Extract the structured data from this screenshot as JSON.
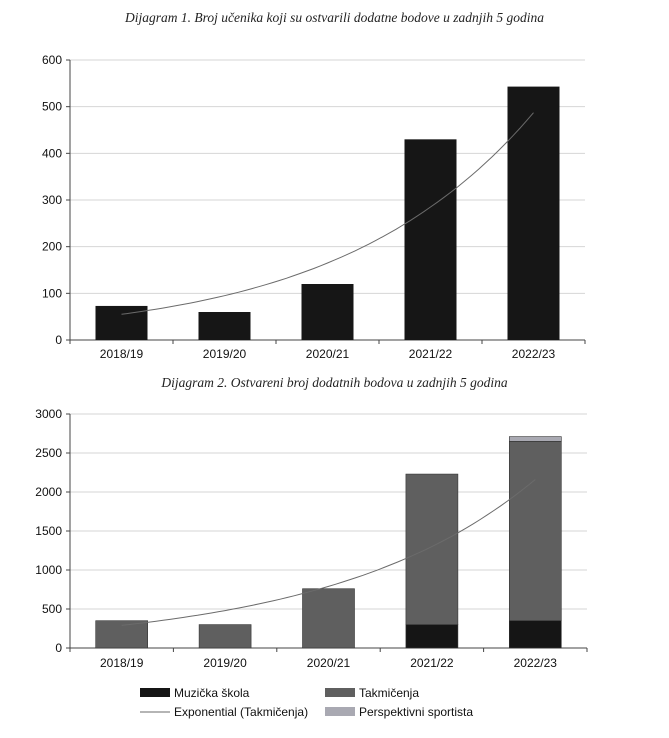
{
  "colors": {
    "bar1": "#161616",
    "muzicka": "#151515",
    "takmicenja": "#5f5f5f",
    "perspektivni": "#a9a9b2",
    "trend": "#6b6b6b",
    "grid": "#d6d6d6",
    "axis": "#444444"
  },
  "chart_data": [
    {
      "type": "bar",
      "title": "Dijagram 1. Broj učenika koji su ostvarili dodatne bodove u zadnjih 5 godina",
      "categories": [
        "2018/19",
        "2019/20",
        "2020/21",
        "2021/22",
        "2022/23"
      ],
      "values": [
        73,
        60,
        120,
        430,
        543
      ],
      "ylim": [
        0,
        600
      ],
      "yticks": [
        0,
        100,
        200,
        300,
        400,
        500,
        600
      ],
      "grid": true,
      "trendline": {
        "type": "exponential",
        "points": [
          55,
          95,
          165,
          285,
          487
        ]
      }
    },
    {
      "type": "bar",
      "stacked": true,
      "title": "Dijagram 2. Ostvareni broj dodatnih bodova u zadnjih 5 godina",
      "categories": [
        "2018/19",
        "2019/20",
        "2020/21",
        "2021/22",
        "2022/23"
      ],
      "series": [
        {
          "name": "Muzička škola",
          "values": [
            0,
            0,
            0,
            300,
            350
          ]
        },
        {
          "name": "Takmičenja",
          "values": [
            350,
            300,
            760,
            1930,
            2300
          ]
        },
        {
          "name": "Perspektivni sportista",
          "values": [
            0,
            0,
            0,
            0,
            60
          ]
        }
      ],
      "ylim": [
        0,
        3000
      ],
      "yticks": [
        0,
        500,
        1000,
        1500,
        2000,
        2500,
        3000
      ],
      "grid": true,
      "trendline": {
        "name": "Exponential (Takmičenja)",
        "type": "exponential",
        "points": [
          290,
          480,
          790,
          1300,
          2160
        ]
      },
      "legend": {
        "placement": "bottom",
        "entries": [
          {
            "label": "Muzička škola",
            "kind": "swatch",
            "color": "#151515"
          },
          {
            "label": "Takmičenja",
            "kind": "swatch",
            "color": "#5f5f5f"
          },
          {
            "label": "Exponential (Takmičenja)",
            "kind": "line",
            "color": "#6b6b6b"
          },
          {
            "label": "Perspektivni sportista",
            "kind": "swatch",
            "color": "#a9a9b2"
          }
        ]
      }
    }
  ]
}
